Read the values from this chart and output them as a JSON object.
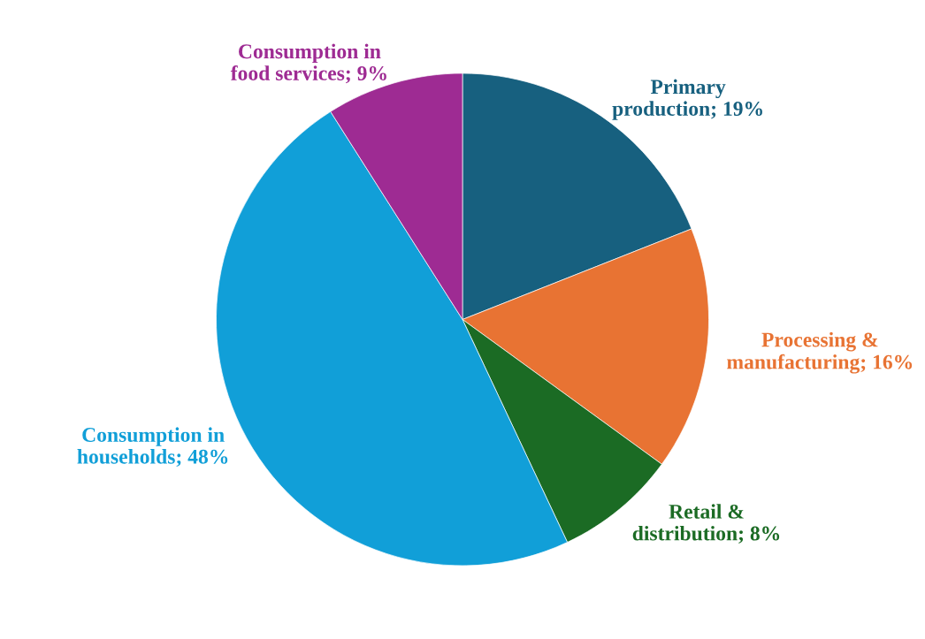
{
  "chart_data": {
    "type": "pie",
    "categories": [
      "Primary production",
      "Processing & manufacturing",
      "Retail & distribution",
      "Consumption in households",
      "Consumption in food services"
    ],
    "values": [
      19,
      16,
      8,
      48,
      9
    ],
    "value_labels": [
      "19%",
      "16%",
      "8%",
      "48%",
      "9%"
    ],
    "colors": [
      "#17607f",
      "#e87333",
      "#1b6b24",
      "#119fd8",
      "#9e2b93"
    ],
    "legend": false
  }
}
